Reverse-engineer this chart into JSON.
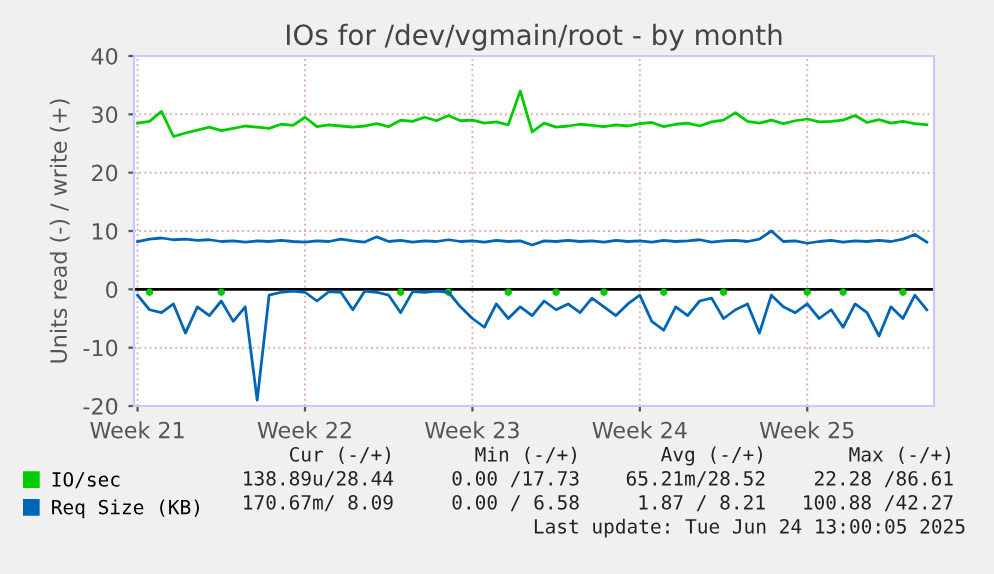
{
  "chart_data": {
    "type": "line",
    "title": "IOs for /dev/vgmain/root - by month",
    "ylabel": "Units read (-) / write (+)",
    "categories": [
      "Week 21",
      null,
      null,
      null,
      null,
      null,
      null,
      null,
      null,
      null,
      null,
      null,
      null,
      null,
      "Week 22",
      null,
      null,
      null,
      null,
      null,
      null,
      null,
      null,
      null,
      null,
      null,
      null,
      null,
      "Week 23",
      null,
      null,
      null,
      null,
      null,
      null,
      null,
      null,
      null,
      null,
      null,
      null,
      null,
      "Week 24",
      null,
      null,
      null,
      null,
      null,
      null,
      null,
      null,
      null,
      null,
      null,
      null,
      null,
      "Week 25",
      null,
      null,
      null,
      null,
      null,
      null,
      null,
      null,
      null,
      null
    ],
    "ylim": [
      -20,
      40
    ],
    "yticks": [
      -20,
      -10,
      0,
      10,
      20,
      30,
      40
    ],
    "grid": true,
    "legend": "bottom left",
    "series": [
      {
        "name": "IO/sec",
        "color": "#00cc00",
        "values": [
          28.5,
          28.8,
          30.5,
          26.2,
          26.8,
          27.3,
          27.8,
          27.2,
          27.6,
          28.0,
          27.8,
          27.6,
          28.3,
          28.1,
          29.5,
          27.9,
          28.2,
          28.0,
          27.8,
          28.0,
          28.4,
          27.9,
          29.0,
          28.8,
          29.5,
          28.9,
          29.8,
          28.9,
          29.0,
          28.5,
          28.7,
          28.2,
          34.0,
          27.0,
          28.5,
          27.8,
          28.0,
          28.3,
          28.1,
          27.9,
          28.2,
          28.0,
          28.4,
          28.6,
          27.9,
          28.3,
          28.5,
          28.0,
          28.7,
          29.0,
          30.3,
          28.8,
          28.5,
          29.0,
          28.4,
          28.9,
          29.2,
          28.7,
          28.8,
          29.0,
          29.8,
          28.6,
          29.1,
          28.5,
          28.8,
          28.4,
          28.2
        ]
      },
      {
        "type": "scatter",
        "color": "#00cc00",
        "values": [
          null,
          -0.5,
          null,
          null,
          null,
          null,
          null,
          -0.5,
          null,
          null,
          null,
          null,
          null,
          null,
          null,
          null,
          null,
          null,
          null,
          null,
          null,
          null,
          -0.5,
          null,
          null,
          null,
          -0.5,
          null,
          null,
          null,
          null,
          -0.5,
          null,
          null,
          null,
          -0.5,
          null,
          null,
          null,
          -0.5,
          null,
          null,
          null,
          null,
          -0.5,
          null,
          null,
          null,
          null,
          -0.5,
          null,
          null,
          null,
          null,
          null,
          null,
          -0.5,
          null,
          null,
          -0.5,
          null,
          null,
          null,
          null,
          -0.5,
          null,
          null
        ]
      },
      {
        "name": "Req Size (KB)",
        "color": "#0066b3",
        "values": [
          8.2,
          8.6,
          8.8,
          8.5,
          8.6,
          8.4,
          8.5,
          8.2,
          8.3,
          8.1,
          8.3,
          8.2,
          8.4,
          8.2,
          8.1,
          8.3,
          8.2,
          8.6,
          8.3,
          8.1,
          9.0,
          8.2,
          8.4,
          8.1,
          8.3,
          8.2,
          8.5,
          8.2,
          8.3,
          8.1,
          8.4,
          8.2,
          8.3,
          7.6,
          8.3,
          8.2,
          8.4,
          8.2,
          8.3,
          8.1,
          8.4,
          8.2,
          8.3,
          8.1,
          8.4,
          8.2,
          8.3,
          8.5,
          8.1,
          8.3,
          8.4,
          8.2,
          8.6,
          10.0,
          8.2,
          8.3,
          7.9,
          8.2,
          8.4,
          8.1,
          8.3,
          8.2,
          8.4,
          8.2,
          8.6,
          9.4,
          8.1
        ]
      },
      {
        "color": "#0066b3",
        "values": [
          -1.0,
          -3.5,
          -4.0,
          -2.5,
          -7.5,
          -3.0,
          -4.5,
          -2.0,
          -5.5,
          -3.0,
          -19.0,
          -1.0,
          -0.5,
          -0.3,
          -0.5,
          -2.0,
          -0.4,
          -0.5,
          -3.5,
          -0.3,
          -0.5,
          -1.0,
          -4.0,
          -0.4,
          -0.5,
          -0.3,
          -0.5,
          -3.0,
          -5.0,
          -6.5,
          -2.5,
          -5.0,
          -3.0,
          -4.5,
          -2.0,
          -3.5,
          -2.5,
          -4.0,
          -1.5,
          -3.0,
          -4.5,
          -2.5,
          -1.0,
          -5.5,
          -7.0,
          -3.0,
          -4.5,
          -2.0,
          -1.5,
          -5.0,
          -3.5,
          -2.5,
          -7.5,
          -1.0,
          -3.0,
          -4.0,
          -2.5,
          -5.0,
          -3.5,
          -6.5,
          -2.5,
          -4.0,
          -8.0,
          -3.0,
          -5.0,
          -1.0,
          -3.5
        ]
      }
    ],
    "ref_lines": [
      {
        "axis": "y",
        "value": 0,
        "color": "#000000"
      }
    ],
    "annotations": [
      "Cur (-/+)",
      "Min (-/+)",
      "Avg (-/+)",
      "Max (-/+)",
      "138.89u/28.44",
      "0.00 /17.73",
      "65.21m/28.52",
      "22.28 /86.61",
      "170.67m/ 8.09",
      "0.00 / 6.58",
      "1.87 / 8.21",
      "100.88 /42.27",
      "Last update: Tue Jun 24 13:00:05 2025"
    ]
  }
}
